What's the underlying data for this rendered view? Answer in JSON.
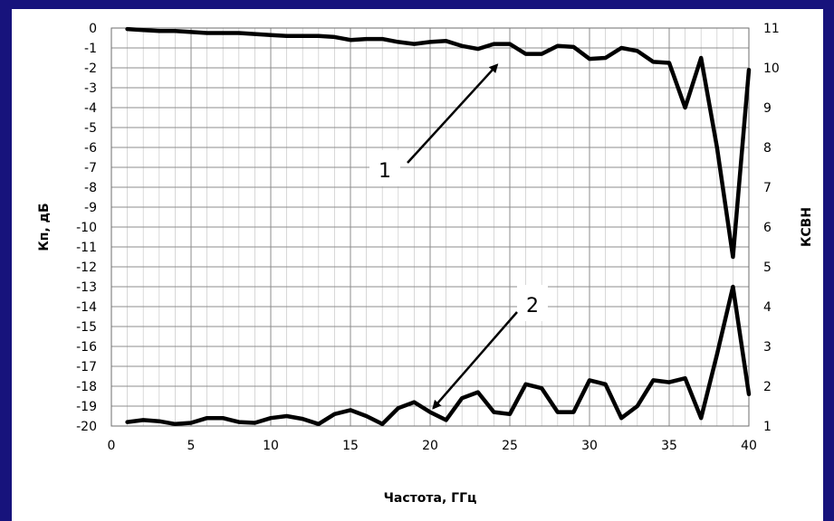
{
  "chart_data": {
    "type": "line",
    "xlabel": "Частота,  ГГц",
    "ylabel_left": "Кп, дБ",
    "ylabel_right": "КСВН",
    "xlim": [
      0,
      40
    ],
    "ylim_left": [
      -20,
      0
    ],
    "ylim_right": [
      1,
      11
    ],
    "x_ticks": [
      "0",
      "5",
      "10",
      "15",
      "20",
      "25",
      "30",
      "35",
      "40"
    ],
    "y_left_ticks": [
      "0",
      "-1",
      "-2",
      "-3",
      "-4",
      "-5",
      "-6",
      "-7",
      "-8",
      "-9",
      "-10",
      "-11",
      "-12",
      "-13",
      "-14",
      "-15",
      "-16",
      "-17",
      "-18",
      "-19",
      "-20"
    ],
    "y_right_ticks": [
      "11",
      "10",
      "9",
      "8",
      "7",
      "6",
      "5",
      "4",
      "3",
      "2",
      "1"
    ],
    "grid": true,
    "series": [
      {
        "name": "1",
        "axis": "left",
        "x": [
          1,
          2,
          3,
          4,
          5,
          6,
          7,
          8,
          9,
          10,
          11,
          12,
          13,
          14,
          15,
          16,
          17,
          18,
          19,
          20,
          21,
          22,
          23,
          24,
          25,
          26,
          27,
          28,
          29,
          30,
          31,
          32,
          33,
          34,
          35,
          36,
          37,
          38,
          39,
          40
        ],
        "values": [
          -0.05,
          -0.1,
          -0.15,
          -0.15,
          -0.2,
          -0.25,
          -0.25,
          -0.25,
          -0.3,
          -0.35,
          -0.4,
          -0.4,
          -0.4,
          -0.45,
          -0.6,
          -0.55,
          -0.55,
          -0.7,
          -0.8,
          -0.7,
          -0.65,
          -0.9,
          -1.05,
          -0.8,
          -0.8,
          -1.3,
          -1.3,
          -0.9,
          -0.95,
          -1.55,
          -1.5,
          -1.0,
          -1.15,
          -1.7,
          -1.75,
          -4.0,
          -1.5,
          -6.0,
          -11.5,
          -2.1
        ]
      },
      {
        "name": "2",
        "axis": "right",
        "x": [
          1,
          2,
          3,
          4,
          5,
          6,
          7,
          8,
          9,
          10,
          11,
          12,
          13,
          14,
          15,
          16,
          17,
          18,
          19,
          20,
          21,
          22,
          23,
          24,
          25,
          26,
          27,
          28,
          29,
          30,
          31,
          32,
          33,
          34,
          35,
          36,
          37,
          38,
          39,
          40
        ],
        "values": [
          1.1,
          1.15,
          1.12,
          1.05,
          1.08,
          1.2,
          1.2,
          1.1,
          1.08,
          1.2,
          1.25,
          1.18,
          1.05,
          1.3,
          1.4,
          1.25,
          1.05,
          1.45,
          1.6,
          1.35,
          1.15,
          1.7,
          1.85,
          1.35,
          1.3,
          2.05,
          1.95,
          1.35,
          1.35,
          2.15,
          2.05,
          1.2,
          1.5,
          2.15,
          2.1,
          2.2,
          1.2,
          2.8,
          4.5,
          1.8
        ]
      }
    ],
    "annotations": [
      "1",
      "2"
    ]
  }
}
